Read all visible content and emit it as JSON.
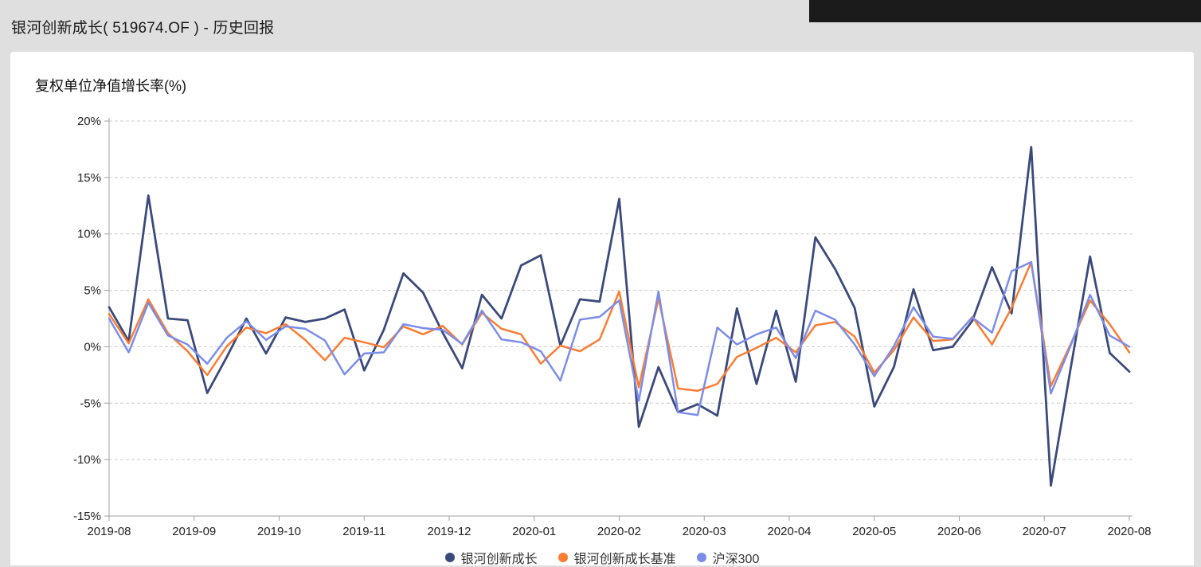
{
  "header": {
    "title": "银河创新成长( 519674.OF ) - 历史回报"
  },
  "chart": {
    "subtitle": "复权单位净值增长率(%)"
  },
  "chart_data": {
    "type": "line",
    "title": "复权单位净值增长率(%)",
    "x_axis": {
      "tick_labels": [
        "2019-08",
        "2019-09",
        "2019-10",
        "2019-11",
        "2019-12",
        "2020-01",
        "2020-02",
        "2020-03",
        "2020-04",
        "2020-05",
        "2020-06",
        "2020-07",
        "2020-08"
      ],
      "note": "weekly data points spanning 2019-08 to 2020-08"
    },
    "y_axis": {
      "tick_labels": [
        "20%",
        "15%",
        "10%",
        "5%",
        "0%",
        "-5%",
        "-10%",
        "-15%"
      ],
      "min": -15,
      "max": 20,
      "step": 5,
      "unit": "%"
    },
    "grid": "horizontal dashed lines",
    "legend_position": "bottom center",
    "series": [
      {
        "name": "银河创新成长",
        "color": "#3A4A7B",
        "values": [
          3.5,
          0.5,
          13.4,
          2.5,
          2.35,
          -4.1,
          -0.9,
          2.5,
          -0.6,
          2.6,
          2.2,
          2.5,
          3.3,
          -2.1,
          1.5,
          6.5,
          4.8,
          1.25,
          -1.9,
          4.6,
          2.5,
          7.2,
          8.1,
          0.1,
          4.2,
          4.0,
          13.1,
          -7.1,
          -1.8,
          -5.8,
          -5.1,
          -6.1,
          3.4,
          -3.3,
          3.2,
          -3.1,
          9.7,
          6.9,
          3.45,
          -5.3,
          -1.8,
          5.1,
          -0.3,
          0.0,
          2.3,
          7.05,
          2.95,
          17.7,
          -12.3,
          -2.0,
          8.0,
          -0.55,
          -2.2
        ]
      },
      {
        "name": "银河创新成长基准",
        "color": "#FB7C32",
        "values": [
          2.9,
          0.3,
          4.2,
          1.2,
          -0.4,
          -2.5,
          0.05,
          1.7,
          1.2,
          2.0,
          0.6,
          -1.2,
          0.8,
          0.4,
          -0.05,
          1.8,
          1.1,
          1.85,
          0.2,
          3.0,
          1.6,
          1.1,
          -1.5,
          0.1,
          -0.4,
          0.65,
          4.9,
          -3.6,
          4.3,
          -3.7,
          -3.9,
          -3.3,
          -0.9,
          -0.1,
          0.8,
          -0.5,
          1.9,
          2.2,
          0.9,
          -2.3,
          -0.3,
          2.6,
          0.5,
          0.65,
          2.65,
          0.2,
          3.45,
          7.5,
          -3.5,
          0.2,
          4.1,
          2.0,
          -0.5
        ]
      },
      {
        "name": "沪深300",
        "color": "#7B8DEA",
        "values": [
          2.5,
          -0.5,
          3.9,
          1.0,
          0.2,
          -1.5,
          0.8,
          2.25,
          0.6,
          1.8,
          1.6,
          0.55,
          -2.45,
          -0.6,
          -0.5,
          2.0,
          1.65,
          1.5,
          0.25,
          3.2,
          0.65,
          0.4,
          -0.4,
          -3.0,
          2.4,
          2.65,
          4.1,
          -4.8,
          4.9,
          -5.8,
          -6.05,
          1.7,
          0.2,
          1.1,
          1.7,
          -1.0,
          3.2,
          2.4,
          0.2,
          -2.6,
          0.05,
          3.5,
          0.9,
          0.7,
          2.6,
          1.25,
          6.7,
          7.5,
          -4.15,
          0.05,
          4.6,
          1.0,
          0.0
        ]
      }
    ]
  },
  "colors": {
    "page_background": "#dfdfdf",
    "card_background": "#ffffff",
    "grid_line": "#cccccc",
    "axis_line": "#a0a0a0",
    "axis_label": "#222222",
    "dark_panel": "#1b1b1b"
  }
}
